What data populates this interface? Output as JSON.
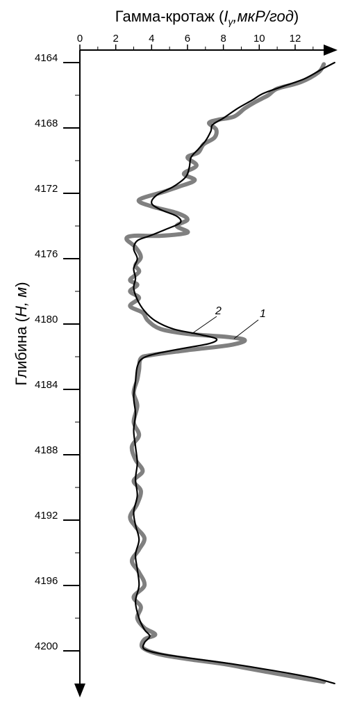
{
  "chart_data": {
    "type": "line",
    "title": "",
    "xlabel_prefix": "Гамма-кротаж (",
    "xlabel_symbol": "I",
    "xlabel_subscript": "γ",
    "xlabel_unit": ",мкР/год",
    "xlabel_suffix": ")",
    "ylabel_prefix": "Глибина (",
    "ylabel_symbol": "H",
    "ylabel_unit": ", м",
    "ylabel_suffix": ")",
    "xlim": [
      0,
      14.2
    ],
    "ylim": [
      4163,
      4202
    ],
    "x_axis_position": "top",
    "y_axis_inverted": true,
    "grid": false,
    "x_ticks": [
      0,
      2,
      4,
      6,
      8,
      10,
      12
    ],
    "y_ticks": [
      4164,
      4168,
      4172,
      4176,
      4180,
      4184,
      4188,
      4192,
      4196,
      4200
    ],
    "series": [
      {
        "name": "1",
        "color": "#808080",
        "points": [
          [
            13.6,
            4164.1
          ],
          [
            13.3,
            4164.6
          ],
          [
            12.3,
            4165.2
          ],
          [
            11.0,
            4165.6
          ],
          [
            10.5,
            4166.0
          ],
          [
            9.8,
            4166.4
          ],
          [
            9.2,
            4166.8
          ],
          [
            8.6,
            4167.3
          ],
          [
            7.7,
            4167.5
          ],
          [
            7.2,
            4167.7
          ],
          [
            7.6,
            4168.1
          ],
          [
            7.5,
            4168.6
          ],
          [
            6.9,
            4169.0
          ],
          [
            6.6,
            4169.5
          ],
          [
            6.0,
            4169.8
          ],
          [
            6.5,
            4170.3
          ],
          [
            5.8,
            4170.8
          ],
          [
            6.4,
            4171.2
          ],
          [
            5.5,
            4171.6
          ],
          [
            4.7,
            4171.9
          ],
          [
            3.3,
            4172.4
          ],
          [
            4.0,
            4172.8
          ],
          [
            5.4,
            4173.2
          ],
          [
            6.0,
            4173.6
          ],
          [
            5.4,
            4174.0
          ],
          [
            6.0,
            4174.4
          ],
          [
            4.5,
            4174.6
          ],
          [
            3.0,
            4174.6
          ],
          [
            2.6,
            4174.8
          ],
          [
            3.1,
            4175.3
          ],
          [
            3.4,
            4175.9
          ],
          [
            3.1,
            4176.4
          ],
          [
            3.3,
            4176.8
          ],
          [
            2.8,
            4177.3
          ],
          [
            3.2,
            4177.6
          ],
          [
            2.8,
            4178.0
          ],
          [
            3.3,
            4178.4
          ],
          [
            2.8,
            4178.9
          ],
          [
            3.5,
            4179.3
          ],
          [
            3.8,
            4179.8
          ],
          [
            4.5,
            4180.3
          ],
          [
            6.0,
            4180.6
          ],
          [
            8.3,
            4180.8
          ],
          [
            9.2,
            4181.0
          ],
          [
            8.3,
            4181.3
          ],
          [
            6.0,
            4181.6
          ],
          [
            4.0,
            4181.9
          ],
          [
            3.4,
            4182.1
          ],
          [
            3.3,
            4182.8
          ],
          [
            3.2,
            4183.4
          ],
          [
            3.0,
            4184.2
          ],
          [
            3.2,
            4185.0
          ],
          [
            3.0,
            4186.0
          ],
          [
            3.3,
            4186.8
          ],
          [
            2.9,
            4187.5
          ],
          [
            3.1,
            4188.3
          ],
          [
            3.5,
            4189.0
          ],
          [
            3.0,
            4189.6
          ],
          [
            3.4,
            4190.2
          ],
          [
            3.2,
            4191.0
          ],
          [
            2.8,
            4191.8
          ],
          [
            3.1,
            4192.4
          ],
          [
            3.6,
            4193.1
          ],
          [
            3.3,
            4193.8
          ],
          [
            2.9,
            4194.5
          ],
          [
            3.3,
            4195.2
          ],
          [
            3.6,
            4196.0
          ],
          [
            3.0,
            4196.7
          ],
          [
            3.4,
            4197.3
          ],
          [
            3.2,
            4198.0
          ],
          [
            3.6,
            4198.6
          ],
          [
            4.2,
            4199.0
          ],
          [
            3.6,
            4199.3
          ],
          [
            3.5,
            4199.8
          ],
          [
            4.4,
            4200.2
          ],
          [
            6.0,
            4200.5
          ],
          [
            8.0,
            4200.8
          ],
          [
            9.0,
            4201.0
          ],
          [
            10.5,
            4201.3
          ],
          [
            12.0,
            4201.6
          ],
          [
            13.6,
            4201.9
          ]
        ]
      },
      {
        "name": "2",
        "color": "#000000",
        "points": [
          [
            14.2,
            4164.0
          ],
          [
            13.5,
            4164.4
          ],
          [
            12.5,
            4165.0
          ],
          [
            11.2,
            4165.5
          ],
          [
            10.2,
            4165.9
          ],
          [
            9.6,
            4166.3
          ],
          [
            8.8,
            4166.8
          ],
          [
            8.0,
            4167.4
          ],
          [
            7.4,
            4167.8
          ],
          [
            7.3,
            4168.2
          ],
          [
            7.0,
            4168.8
          ],
          [
            6.6,
            4169.3
          ],
          [
            6.2,
            4169.8
          ],
          [
            6.1,
            4170.4
          ],
          [
            5.9,
            4171.0
          ],
          [
            5.2,
            4171.6
          ],
          [
            4.3,
            4172.1
          ],
          [
            4.0,
            4172.6
          ],
          [
            4.5,
            4173.0
          ],
          [
            5.4,
            4173.4
          ],
          [
            5.6,
            4173.8
          ],
          [
            4.8,
            4174.2
          ],
          [
            3.9,
            4174.6
          ],
          [
            3.2,
            4174.9
          ],
          [
            3.0,
            4175.4
          ],
          [
            3.2,
            4176.0
          ],
          [
            3.0,
            4176.6
          ],
          [
            3.1,
            4177.2
          ],
          [
            3.0,
            4177.8
          ],
          [
            3.2,
            4178.5
          ],
          [
            3.6,
            4179.2
          ],
          [
            4.2,
            4179.8
          ],
          [
            5.2,
            4180.3
          ],
          [
            6.5,
            4180.6
          ],
          [
            7.6,
            4180.9
          ],
          [
            7.2,
            4181.2
          ],
          [
            5.7,
            4181.5
          ],
          [
            4.3,
            4181.8
          ],
          [
            3.5,
            4182.1
          ],
          [
            3.2,
            4182.6
          ],
          [
            3.1,
            4183.5
          ],
          [
            3.0,
            4184.5
          ],
          [
            3.1,
            4185.5
          ],
          [
            3.0,
            4186.5
          ],
          [
            3.1,
            4187.5
          ],
          [
            3.2,
            4188.5
          ],
          [
            3.1,
            4189.5
          ],
          [
            3.2,
            4190.5
          ],
          [
            3.0,
            4191.5
          ],
          [
            3.1,
            4192.3
          ],
          [
            3.3,
            4193.2
          ],
          [
            3.1,
            4194.1
          ],
          [
            3.2,
            4195.0
          ],
          [
            3.3,
            4196.0
          ],
          [
            3.1,
            4197.0
          ],
          [
            3.3,
            4198.0
          ],
          [
            3.6,
            4198.7
          ],
          [
            3.9,
            4199.1
          ],
          [
            3.6,
            4199.5
          ],
          [
            3.6,
            4199.9
          ],
          [
            4.6,
            4200.2
          ],
          [
            6.5,
            4200.5
          ],
          [
            8.5,
            4200.8
          ],
          [
            10.2,
            4201.1
          ],
          [
            11.8,
            4201.4
          ],
          [
            13.2,
            4201.7
          ],
          [
            14.2,
            4202.0
          ]
        ]
      }
    ]
  }
}
